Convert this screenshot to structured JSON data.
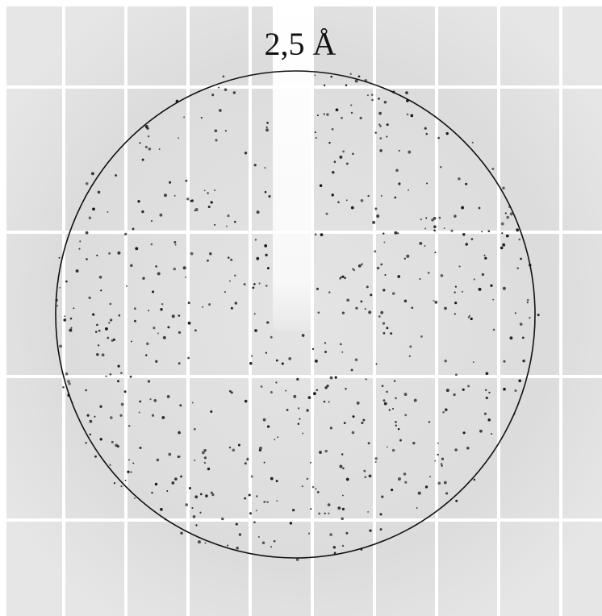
{
  "resolution_label": "2,5 Å"
}
